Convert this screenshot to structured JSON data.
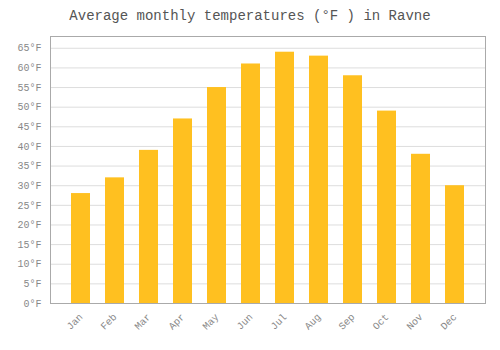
{
  "chart_data": {
    "type": "bar",
    "title": "Average monthly temperatures (°F ) in Ravne",
    "categories": [
      "Jan",
      "Feb",
      "Mar",
      "Apr",
      "May",
      "Jun",
      "Jul",
      "Aug",
      "Sep",
      "Oct",
      "Nov",
      "Dec"
    ],
    "values": [
      28,
      32,
      39,
      47,
      55,
      61,
      64,
      63,
      58,
      49,
      38,
      30
    ],
    "color": "#FFC020",
    "ylim": [
      0,
      68
    ],
    "yticks": [
      {
        "value": 0,
        "label": "0°F"
      },
      {
        "value": 5,
        "label": "5°F"
      },
      {
        "value": 10,
        "label": "10°F"
      },
      {
        "value": 15,
        "label": "15°F"
      },
      {
        "value": 20,
        "label": "20°F"
      },
      {
        "value": 25,
        "label": "25°F"
      },
      {
        "value": 30,
        "label": "30°F"
      },
      {
        "value": 35,
        "label": "35°F"
      },
      {
        "value": 40,
        "label": "40°F"
      },
      {
        "value": 45,
        "label": "45°F"
      },
      {
        "value": 50,
        "label": "50°F"
      },
      {
        "value": 55,
        "label": "55°F"
      },
      {
        "value": 60,
        "label": "60°F"
      },
      {
        "value": 65,
        "label": "65°F"
      }
    ],
    "grid": true
  }
}
